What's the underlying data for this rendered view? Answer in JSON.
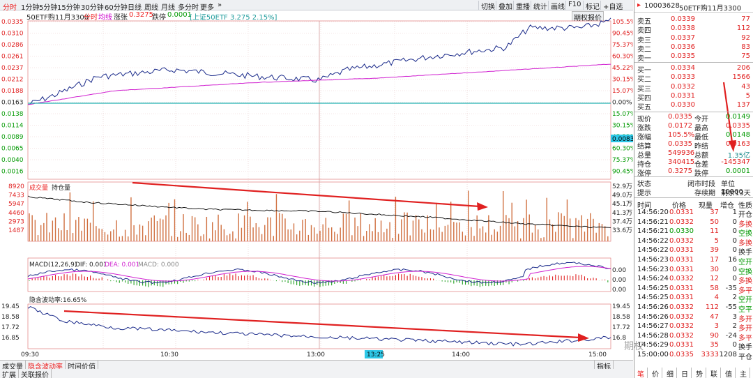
{
  "tabs": [
    "分时",
    "1分钟",
    "5分钟",
    "15分钟",
    "30分钟",
    "60分钟",
    "日线",
    "周线",
    "月线",
    "多分时",
    "更多"
  ],
  "toolbar": [
    "切换",
    "叠加",
    "重播",
    "统计",
    "画线",
    "F10",
    "标记",
    "+自选"
  ],
  "header": {
    "name": "50ETF购11月3300",
    "mode": "分时",
    "avg_label": "均线",
    "chg_label": "涨张",
    "chg_value": "0.3275",
    "drop_label": "跌停",
    "drop_value": "0.0001",
    "index_info": "[上证50ETF 3.275 2.15%]",
    "quote_btn": "期权报价"
  },
  "price_axis_left": [
    "0.0335",
    "0.0310",
    "0.0286",
    "0.0261",
    "0.0237",
    "0.0212",
    "0.0188",
    "0.0163",
    "0.0138",
    "0.0114",
    "0.0089",
    "0.0065",
    "0.0040",
    "0.0016"
  ],
  "pct_axis_right": [
    "105.5%",
    "90.45%",
    "75.37%",
    "60.30%",
    "45.22%",
    "30.15%",
    "15.07%",
    "0.00%",
    "15.07%",
    "30.15%",
    "45.22%",
    "60.30%",
    "75.37%",
    "90.45%"
  ],
  "cursor_price": "0.0083",
  "volume": {
    "label1": "成交量",
    "label2": "持仓量",
    "left_axis": [
      "8920",
      "7433",
      "5947",
      "4460",
      "2973",
      "1487"
    ],
    "right_axis": [
      "52.9万",
      "49.0万",
      "45.1万",
      "41.3万",
      "37.4万",
      "33.6万"
    ]
  },
  "macd": {
    "title": "MACD(12,26,9)",
    "dif": "DIF: 0.001",
    "dea": "DEA: 0.001",
    "macd": "MACD: 0.000",
    "right_axis": [
      "0.00",
      "0.00",
      "0.00"
    ]
  },
  "iv": {
    "title": "隐含波动率:16.65%",
    "left_axis": [
      "19.45",
      "18.58",
      "17.72",
      "16.85"
    ],
    "right_axis": [
      "19.45",
      "18.58",
      "17.72",
      "16.8"
    ]
  },
  "time_axis": [
    "09:30",
    "10:30",
    "13:00",
    "14:00",
    "15:00"
  ],
  "cursor_time": "13:25",
  "bottom_tabs": [
    "成交量",
    "隐含波动率",
    "时间价值"
  ],
  "bottom_tabs2": [
    "扩展",
    "关联报价"
  ],
  "indicator_btn": "指标",
  "right_panel": {
    "code": "10003628",
    "name": "50ETF购11月3300",
    "asks": [
      {
        "label": "卖五",
        "price": "0.0339",
        "vol": "77"
      },
      {
        "label": "卖四",
        "price": "0.0338",
        "vol": "112"
      },
      {
        "label": "卖三",
        "price": "0.0337",
        "vol": "92"
      },
      {
        "label": "卖二",
        "price": "0.0336",
        "vol": "83"
      },
      {
        "label": "卖一",
        "price": "0.0335",
        "vol": "75"
      }
    ],
    "bids": [
      {
        "label": "买一",
        "price": "0.0334",
        "vol": "206"
      },
      {
        "label": "买二",
        "price": "0.0333",
        "vol": "1566"
      },
      {
        "label": "买三",
        "price": "0.0332",
        "vol": "43"
      },
      {
        "label": "买四",
        "price": "0.0331",
        "vol": "5"
      },
      {
        "label": "买五",
        "price": "0.0330",
        "vol": "137"
      }
    ],
    "stats": [
      {
        "l1": "现价",
        "v1": "0.0335",
        "l2": "今开",
        "v2": "0.0149"
      },
      {
        "l1": "涨跌",
        "v1": "0.0172",
        "l2": "最高",
        "v2": "0.0335"
      },
      {
        "l1": "涨幅",
        "v1": "105.5%",
        "l2": "最低",
        "v2": "0.0148"
      },
      {
        "l1": "结算",
        "v1": "0.0335",
        "l2": "昨结",
        "v2": "0.0163"
      },
      {
        "l1": "总量",
        "v1": "549936",
        "l2": "总额",
        "v2": "1.35亿"
      },
      {
        "l1": "持仓",
        "v1": "340415",
        "l2": "仓差",
        "v2": "-145347"
      },
      {
        "l1": "涨停",
        "v1": "0.3275",
        "l2": "跌停",
        "v2": "0.0001"
      }
    ],
    "status_label": "状态",
    "status_value": "闭市时段",
    "unit_label": "单位10000",
    "hint_label": "提示",
    "hint_value": "存续期",
    "hint_days": "剩余13天",
    "trade_headers": [
      "时间",
      "价格",
      "现量",
      "增仓",
      "性质"
    ],
    "trades": [
      {
        "t": "14:56:20",
        "p": "0.0331",
        "q": "37",
        "d": "1",
        "k": "开仓"
      },
      {
        "t": "14:56:21",
        "p": "0.0332",
        "q": "50",
        "d": "0",
        "k": "多换"
      },
      {
        "t": "14:56:21",
        "p": "0.0330",
        "q": "11",
        "d": "0",
        "k": "空换"
      },
      {
        "t": "14:56:22",
        "p": "0.0332",
        "q": "5",
        "d": "0",
        "k": "多换"
      },
      {
        "t": "14:56:22",
        "p": "0.0331",
        "q": "39",
        "d": "0",
        "k": "换手"
      },
      {
        "t": "14:56:23",
        "p": "0.0331",
        "q": "17",
        "d": "16",
        "k": "空开"
      },
      {
        "t": "14:56:23",
        "p": "0.0331",
        "q": "30",
        "d": "0",
        "k": "空换"
      },
      {
        "t": "14:56:24",
        "p": "0.0332",
        "q": "12",
        "d": "0",
        "k": "多换"
      },
      {
        "t": "14:56:25",
        "p": "0.0331",
        "q": "58",
        "d": "-35",
        "k": "多平"
      },
      {
        "t": "14:56:25",
        "p": "0.0331",
        "q": "4",
        "d": "2",
        "k": "空开"
      },
      {
        "t": "14:56:26",
        "p": "0.0332",
        "q": "112",
        "d": "-55",
        "k": "空平"
      },
      {
        "t": "14:56:26",
        "p": "0.0332",
        "q": "47",
        "d": "3",
        "k": "多开"
      },
      {
        "t": "14:56:27",
        "p": "0.0332",
        "q": "3",
        "d": "2",
        "k": "多开"
      },
      {
        "t": "14:56:28",
        "p": "0.0332",
        "q": "90",
        "d": "-24",
        "k": "多平"
      },
      {
        "t": "14:56:29",
        "p": "0.0331",
        "q": "35",
        "d": "0",
        "k": "换手"
      },
      {
        "t": "15:00:00",
        "p": "0.0335",
        "q": "3333",
        "d": "1208",
        "k": "平仓"
      }
    ],
    "footer_tabs": [
      "笔",
      "价",
      "细",
      "日",
      "势",
      "联",
      "值",
      "主"
    ]
  },
  "watermark": "期权"
}
